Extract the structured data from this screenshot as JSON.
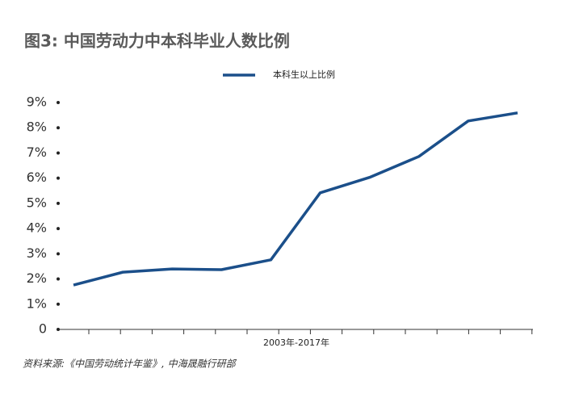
{
  "chart_data": {
    "type": "line",
    "title": "图3: 中国劳动力中本科毕业人数比例",
    "x_label": "2003年-2017年",
    "source": "资料来源:《中国劳动统计年鉴》, 中海晟融行研部",
    "categories": [
      null,
      null,
      null,
      null,
      null,
      null,
      null,
      null,
      null,
      null
    ],
    "series": [
      {
        "name": "本科生以上比例",
        "color": "#1b4f8a",
        "values": [
          1.76,
          2.27,
          2.4,
          2.37,
          2.76,
          5.42,
          6.03,
          6.86,
          8.27,
          8.59
        ]
      }
    ],
    "ylim": [
      0,
      9
    ],
    "yticks": [
      0,
      {
        "value": 1,
        "label": "1%"
      },
      {
        "value": 2,
        "label": "2%"
      },
      {
        "value": 3,
        "label": "3%"
      },
      {
        "value": 4,
        "label": "4%"
      },
      {
        "value": 5,
        "label": "5%"
      },
      {
        "value": 6,
        "label": "6%"
      },
      {
        "value": 7,
        "label": "7%"
      },
      {
        "value": 8,
        "label": "8%"
      },
      {
        "value": 9,
        "label": "9%"
      }
    ],
    "legend": "top"
  }
}
